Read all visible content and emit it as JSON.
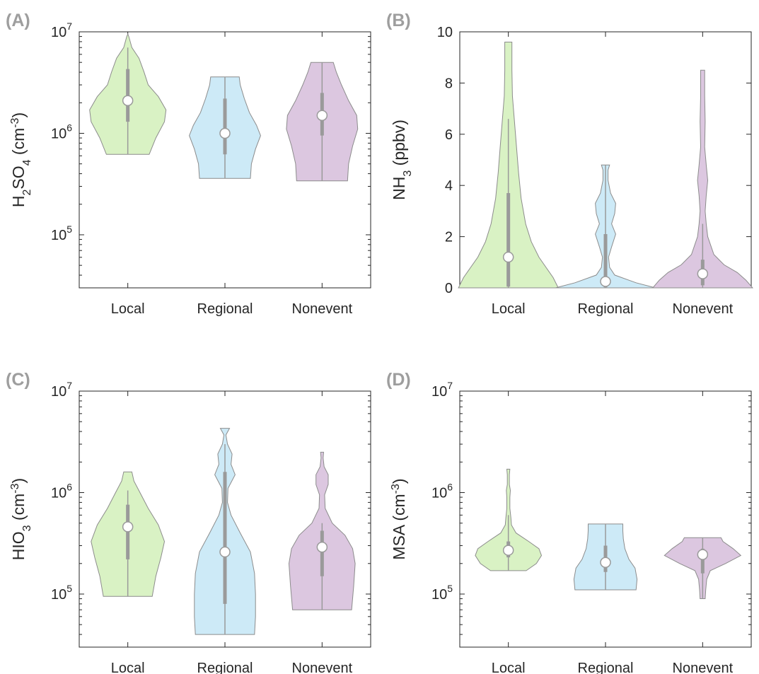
{
  "colors": {
    "Local": "#d9f2c4",
    "Regional": "#cdeaf7",
    "Nonevent": "#dcc7e0",
    "edge": "#8c8c8c",
    "box": "#9a9a9a",
    "median_fill": "#ffffff"
  },
  "chart_data": [
    {
      "panel": "(A)",
      "type": "violin",
      "scale": "log",
      "ylim": [
        30000,
        10000000
      ],
      "yticks": [
        100000,
        1000000,
        10000000
      ],
      "ytick_labels": [
        {
          "base": "10",
          "exp": "5"
        },
        {
          "base": "10",
          "exp": "6"
        },
        {
          "base": "10",
          "exp": "7"
        }
      ],
      "ylabel": {
        "parts": [
          {
            "t": "H"
          },
          {
            "t": "2",
            "sub": true
          },
          {
            "t": "SO"
          },
          {
            "t": "4",
            "sub": true
          },
          {
            "t": " (cm"
          },
          {
            "t": "-3",
            "sup": true
          },
          {
            "t": ")"
          }
        ]
      },
      "categories": [
        "Local",
        "Regional",
        "Nonevent"
      ],
      "series": [
        {
          "name": "Local",
          "min": 620000,
          "max": 9500000,
          "q1": 1300000,
          "q3": 4300000,
          "median": 2100000,
          "wlo": 620000,
          "whi": 7000000,
          "density": [
            [
              620000,
              0.42
            ],
            [
              900000,
              0.55
            ],
            [
              1300000,
              0.72
            ],
            [
              1700000,
              0.75
            ],
            [
              2300000,
              0.6
            ],
            [
              3000000,
              0.4
            ],
            [
              4000000,
              0.32
            ],
            [
              5500000,
              0.22
            ],
            [
              7000000,
              0.08
            ],
            [
              9000000,
              0.02
            ],
            [
              9500000,
              0.0
            ]
          ]
        },
        {
          "name": "Regional",
          "min": 360000,
          "max": 3600000,
          "q1": 620000,
          "q3": 2200000,
          "median": 1000000,
          "wlo": 360000,
          "whi": 3600000,
          "density": [
            [
              360000,
              0.5
            ],
            [
              500000,
              0.52
            ],
            [
              700000,
              0.6
            ],
            [
              950000,
              0.7
            ],
            [
              1200000,
              0.62
            ],
            [
              1600000,
              0.48
            ],
            [
              2200000,
              0.38
            ],
            [
              3000000,
              0.3
            ],
            [
              3600000,
              0.28
            ]
          ]
        },
        {
          "name": "Nonevent",
          "min": 340000,
          "max": 5000000,
          "q1": 950000,
          "q3": 2500000,
          "median": 1500000,
          "wlo": 340000,
          "whi": 5000000,
          "density": [
            [
              340000,
              0.5
            ],
            [
              500000,
              0.52
            ],
            [
              750000,
              0.6
            ],
            [
              1100000,
              0.7
            ],
            [
              1500000,
              0.68
            ],
            [
              2100000,
              0.52
            ],
            [
              3000000,
              0.38
            ],
            [
              4000000,
              0.28
            ],
            [
              5000000,
              0.22
            ]
          ]
        }
      ]
    },
    {
      "panel": "(B)",
      "type": "violin",
      "scale": "linear",
      "ylim": [
        0,
        10
      ],
      "yticks": [
        0,
        2,
        4,
        6,
        8,
        10
      ],
      "ytick_labels": [
        {
          "base": "0"
        },
        {
          "base": "2"
        },
        {
          "base": "4"
        },
        {
          "base": "6"
        },
        {
          "base": "8"
        },
        {
          "base": "10"
        }
      ],
      "ylabel": {
        "parts": [
          {
            "t": "NH"
          },
          {
            "t": "3",
            "sub": true
          },
          {
            "t": " (ppbv)"
          }
        ]
      },
      "categories": [
        "Local",
        "Regional",
        "Nonevent"
      ],
      "series": [
        {
          "name": "Local",
          "min": 0,
          "max": 9.6,
          "q1": 0.05,
          "q3": 3.7,
          "median": 1.2,
          "wlo": 0,
          "whi": 6.6,
          "density": [
            [
              0,
              0.98
            ],
            [
              0.4,
              0.88
            ],
            [
              0.8,
              0.74
            ],
            [
              1.2,
              0.6
            ],
            [
              1.8,
              0.45
            ],
            [
              2.5,
              0.34
            ],
            [
              3.5,
              0.25
            ],
            [
              4.5,
              0.2
            ],
            [
              5.5,
              0.16
            ],
            [
              6.5,
              0.12
            ],
            [
              7.5,
              0.08
            ],
            [
              8.5,
              0.07
            ],
            [
              9.6,
              0.07
            ]
          ]
        },
        {
          "name": "Regional",
          "min": 0,
          "max": 4.8,
          "q1": 0.02,
          "q3": 2.1,
          "median": 0.25,
          "wlo": 0,
          "whi": 4.8,
          "density": [
            [
              0,
              0.98
            ],
            [
              0.2,
              0.6
            ],
            [
              0.5,
              0.18
            ],
            [
              0.8,
              0.08
            ],
            [
              1.2,
              0.06
            ],
            [
              1.6,
              0.12
            ],
            [
              2.1,
              0.2
            ],
            [
              2.5,
              0.12
            ],
            [
              2.9,
              0.18
            ],
            [
              3.3,
              0.2
            ],
            [
              3.7,
              0.1
            ],
            [
              4.2,
              0.05
            ],
            [
              4.6,
              0.05
            ],
            [
              4.8,
              0.08
            ]
          ]
        },
        {
          "name": "Nonevent",
          "min": 0,
          "max": 8.5,
          "q1": 0.1,
          "q3": 1.1,
          "median": 0.55,
          "wlo": 0,
          "whi": 2.5,
          "density": [
            [
              0,
              0.98
            ],
            [
              0.3,
              0.85
            ],
            [
              0.6,
              0.68
            ],
            [
              0.9,
              0.42
            ],
            [
              1.3,
              0.22
            ],
            [
              2.0,
              0.1
            ],
            [
              2.5,
              0.07
            ],
            [
              3.0,
              0.05
            ],
            [
              3.6,
              0.07
            ],
            [
              4.2,
              0.1
            ],
            [
              4.8,
              0.07
            ],
            [
              5.5,
              0.04
            ],
            [
              6.5,
              0.05
            ],
            [
              7.5,
              0.04
            ],
            [
              8.5,
              0.04
            ]
          ]
        }
      ]
    },
    {
      "panel": "(C)",
      "type": "violin",
      "scale": "log",
      "ylim": [
        30000,
        10000000
      ],
      "yticks": [
        100000,
        1000000,
        10000000
      ],
      "ytick_labels": [
        {
          "base": "10",
          "exp": "5"
        },
        {
          "base": "10",
          "exp": "6"
        },
        {
          "base": "10",
          "exp": "7"
        }
      ],
      "ylabel": {
        "parts": [
          {
            "t": "HIO"
          },
          {
            "t": "3",
            "sub": true
          },
          {
            "t": " (cm"
          },
          {
            "t": "-3",
            "sup": true
          },
          {
            "t": ")"
          }
        ]
      },
      "categories": [
        "Local",
        "Regional",
        "Nonevent"
      ],
      "series": [
        {
          "name": "Local",
          "min": 95000,
          "max": 1600000,
          "q1": 220000,
          "q3": 760000,
          "median": 460000,
          "wlo": 95000,
          "whi": 1050000,
          "density": [
            [
              95000,
              0.48
            ],
            [
              150000,
              0.55
            ],
            [
              230000,
              0.65
            ],
            [
              330000,
              0.72
            ],
            [
              480000,
              0.6
            ],
            [
              700000,
              0.4
            ],
            [
              1000000,
              0.24
            ],
            [
              1300000,
              0.12
            ],
            [
              1600000,
              0.08
            ]
          ]
        },
        {
          "name": "Regional",
          "min": 40000,
          "max": 4300000,
          "q1": 80000,
          "q3": 1600000,
          "median": 260000,
          "wlo": 40000,
          "whi": 3000000,
          "density": [
            [
              40000,
              0.58
            ],
            [
              60000,
              0.6
            ],
            [
              100000,
              0.6
            ],
            [
              160000,
              0.58
            ],
            [
              260000,
              0.5
            ],
            [
              400000,
              0.3
            ],
            [
              600000,
              0.12
            ],
            [
              800000,
              0.05
            ],
            [
              1100000,
              0.06
            ],
            [
              1500000,
              0.2
            ],
            [
              1900000,
              0.12
            ],
            [
              2400000,
              0.14
            ],
            [
              3000000,
              0.05
            ],
            [
              3700000,
              0.02
            ],
            [
              4300000,
              0.09
            ]
          ]
        },
        {
          "name": "Nonevent",
          "min": 70000,
          "max": 2500000,
          "q1": 150000,
          "q3": 420000,
          "median": 290000,
          "wlo": 70000,
          "whi": 500000,
          "density": [
            [
              70000,
              0.58
            ],
            [
              120000,
              0.62
            ],
            [
              200000,
              0.65
            ],
            [
              280000,
              0.6
            ],
            [
              380000,
              0.45
            ],
            [
              500000,
              0.2
            ],
            [
              700000,
              0.06
            ],
            [
              950000,
              0.05
            ],
            [
              1200000,
              0.12
            ],
            [
              1500000,
              0.12
            ],
            [
              1800000,
              0.04
            ],
            [
              2200000,
              0.02
            ],
            [
              2500000,
              0.03
            ]
          ]
        }
      ]
    },
    {
      "panel": "(D)",
      "type": "violin",
      "scale": "log",
      "ylim": [
        30000,
        10000000
      ],
      "yticks": [
        100000,
        1000000,
        10000000
      ],
      "ytick_labels": [
        {
          "base": "10",
          "exp": "5"
        },
        {
          "base": "10",
          "exp": "6"
        },
        {
          "base": "10",
          "exp": "7"
        }
      ],
      "ylabel": {
        "parts": [
          {
            "t": "MSA (cm"
          },
          {
            "t": "-3",
            "sup": true
          },
          {
            "t": ")"
          }
        ]
      },
      "categories": [
        "Local",
        "Regional",
        "Nonevent"
      ],
      "series": [
        {
          "name": "Local",
          "min": 170000,
          "max": 1700000,
          "q1": 230000,
          "q3": 330000,
          "median": 270000,
          "wlo": 170000,
          "whi": 600000,
          "density": [
            [
              170000,
              0.35
            ],
            [
              200000,
              0.55
            ],
            [
              240000,
              0.65
            ],
            [
              280000,
              0.6
            ],
            [
              330000,
              0.4
            ],
            [
              400000,
              0.15
            ],
            [
              480000,
              0.06
            ],
            [
              560000,
              0.05
            ],
            [
              700000,
              0.03
            ],
            [
              900000,
              0.03
            ],
            [
              1050000,
              0.04
            ],
            [
              1200000,
              0.02
            ],
            [
              1500000,
              0.02
            ],
            [
              1700000,
              0.03
            ]
          ]
        },
        {
          "name": "Regional",
          "min": 110000,
          "max": 490000,
          "q1": 165000,
          "q3": 300000,
          "median": 205000,
          "wlo": 110000,
          "whi": 490000,
          "density": [
            [
              110000,
              0.6
            ],
            [
              140000,
              0.62
            ],
            [
              180000,
              0.58
            ],
            [
              220000,
              0.46
            ],
            [
              280000,
              0.38
            ],
            [
              350000,
              0.35
            ],
            [
              420000,
              0.34
            ],
            [
              490000,
              0.34
            ]
          ]
        },
        {
          "name": "Nonevent",
          "min": 90000,
          "max": 360000,
          "q1": 160000,
          "q3": 280000,
          "median": 245000,
          "wlo": 90000,
          "whi": 360000,
          "density": [
            [
              90000,
              0.05
            ],
            [
              110000,
              0.06
            ],
            [
              140000,
              0.08
            ],
            [
              170000,
              0.15
            ],
            [
              200000,
              0.45
            ],
            [
              240000,
              0.75
            ],
            [
              280000,
              0.6
            ],
            [
              330000,
              0.4
            ],
            [
              360000,
              0.36
            ]
          ]
        }
      ]
    }
  ]
}
